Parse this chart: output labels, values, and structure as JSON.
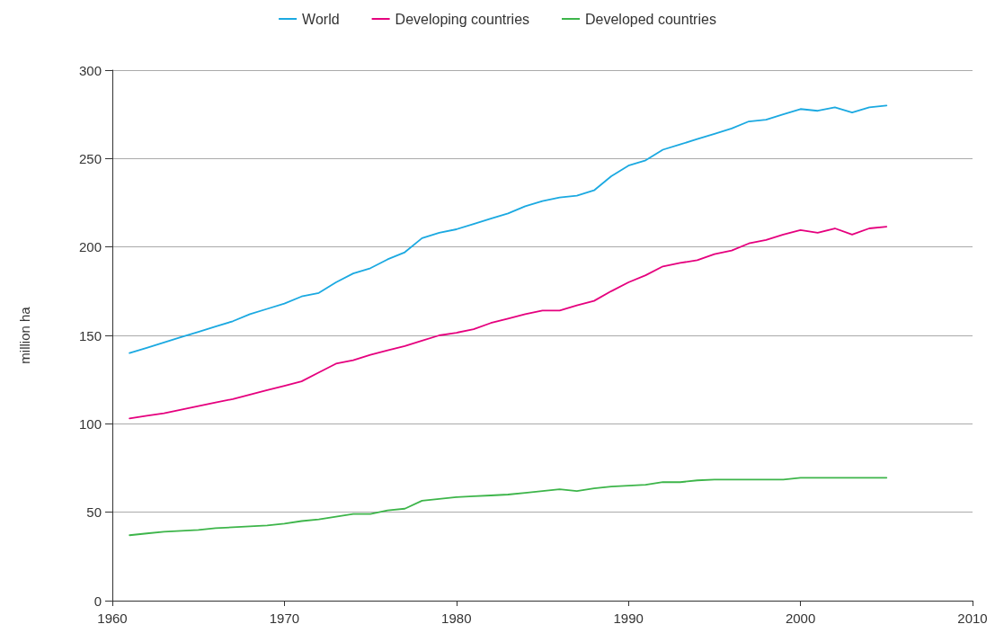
{
  "chart_data": {
    "type": "line",
    "ylabel": "million ha",
    "x": [
      1961,
      1962,
      1963,
      1964,
      1965,
      1966,
      1967,
      1968,
      1969,
      1970,
      1971,
      1972,
      1973,
      1974,
      1975,
      1976,
      1977,
      1978,
      1979,
      1980,
      1981,
      1982,
      1983,
      1984,
      1985,
      1986,
      1987,
      1988,
      1989,
      1990,
      1991,
      1992,
      1993,
      1994,
      1995,
      1996,
      1997,
      1998,
      1999,
      2000,
      2001,
      2002,
      2003,
      2004,
      2005
    ],
    "series": [
      {
        "name": "World",
        "color": "#1ba9e1",
        "values": [
          140,
          143,
          146,
          149,
          152,
          155,
          158,
          162,
          165,
          168,
          172,
          174,
          180,
          185,
          188,
          193,
          197,
          205,
          208,
          210,
          213,
          216,
          219,
          223,
          226,
          228,
          229,
          232,
          240,
          246,
          249,
          255,
          258,
          261,
          264,
          267,
          271,
          272,
          275,
          278,
          277,
          279,
          276,
          279,
          280
        ]
      },
      {
        "name": "Developing countries",
        "color": "#e5007e",
        "values": [
          103,
          104.5,
          106,
          108,
          110,
          112,
          114,
          116.5,
          119,
          121.5,
          124,
          129,
          134,
          136,
          139,
          141.5,
          144,
          147,
          150,
          151.5,
          153.5,
          157,
          159.5,
          162,
          164,
          164,
          167,
          169.5,
          175,
          180,
          184,
          189,
          191,
          192.5,
          196,
          198,
          202,
          204,
          207,
          209.5,
          208,
          210.5,
          207,
          210.5,
          211.5
        ]
      },
      {
        "name": "Developed countries",
        "color": "#3db54a",
        "values": [
          37,
          38,
          39,
          39.5,
          40,
          41,
          41.5,
          42,
          42.5,
          43.5,
          45,
          46,
          47.5,
          49,
          49,
          51,
          52,
          56.5,
          57.5,
          58.5,
          59,
          59.5,
          60,
          61,
          62,
          63,
          62,
          63.5,
          64.5,
          65,
          65.5,
          67,
          67,
          68,
          68.5,
          68.5,
          68.5,
          68.5,
          68.5,
          69.5,
          69.5,
          69.5,
          69.5,
          69.5,
          69.5
        ]
      }
    ],
    "xlim": [
      1960,
      2010
    ],
    "xticks": [
      1960,
      1970,
      1980,
      1990,
      2000,
      2010
    ],
    "ylim": [
      0,
      300
    ],
    "yticks": [
      0,
      50,
      100,
      150,
      200,
      250,
      300
    ],
    "grid": "y",
    "legend": "top",
    "marker": "none",
    "line_style": "solid"
  }
}
